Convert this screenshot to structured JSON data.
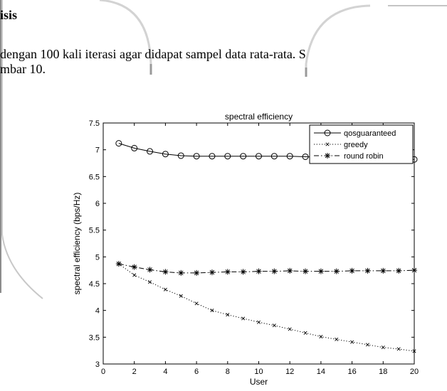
{
  "page": {
    "heading": "isis",
    "line1": "dengan 100 kali iterasi agar didapat sampel data rata-rata. S",
    "line2": "mbar 10."
  },
  "chart_data": {
    "type": "line",
    "title": "spectral efficiency",
    "xlabel": "User",
    "ylabel": "spectral efficiency (bps/Hz)",
    "xlim": [
      0,
      20
    ],
    "ylim": [
      3,
      7.5
    ],
    "xticks": [
      0,
      2,
      4,
      6,
      8,
      10,
      12,
      14,
      16,
      18,
      20
    ],
    "yticks": [
      3,
      3.5,
      4,
      4.5,
      5,
      5.5,
      6,
      6.5,
      7,
      7.5
    ],
    "legend_position": "top-right",
    "grid": false,
    "x": [
      1,
      2,
      3,
      4,
      5,
      6,
      7,
      8,
      9,
      10,
      11,
      12,
      13,
      14,
      15,
      16,
      17,
      18,
      19,
      20
    ],
    "series": [
      {
        "name": "qosguaranteed",
        "marker": "circle",
        "linestyle": "solid",
        "values": [
          7.12,
          7.03,
          6.97,
          6.92,
          6.89,
          6.88,
          6.88,
          6.88,
          6.88,
          6.88,
          6.88,
          6.88,
          6.87,
          6.86,
          6.86,
          6.85,
          6.85,
          6.84,
          6.83,
          6.82
        ]
      },
      {
        "name": "greedy",
        "marker": "x",
        "linestyle": "dotted",
        "values": [
          4.87,
          4.66,
          4.53,
          4.39,
          4.27,
          4.13,
          4.0,
          3.92,
          3.85,
          3.78,
          3.72,
          3.65,
          3.58,
          3.51,
          3.46,
          3.41,
          3.36,
          3.31,
          3.28,
          3.24
        ]
      },
      {
        "name": "round robin",
        "marker": "star",
        "linestyle": "dashdot",
        "values": [
          4.87,
          4.81,
          4.76,
          4.72,
          4.7,
          4.7,
          4.71,
          4.72,
          4.72,
          4.73,
          4.73,
          4.74,
          4.73,
          4.73,
          4.73,
          4.74,
          4.74,
          4.74,
          4.74,
          4.75
        ]
      }
    ]
  }
}
